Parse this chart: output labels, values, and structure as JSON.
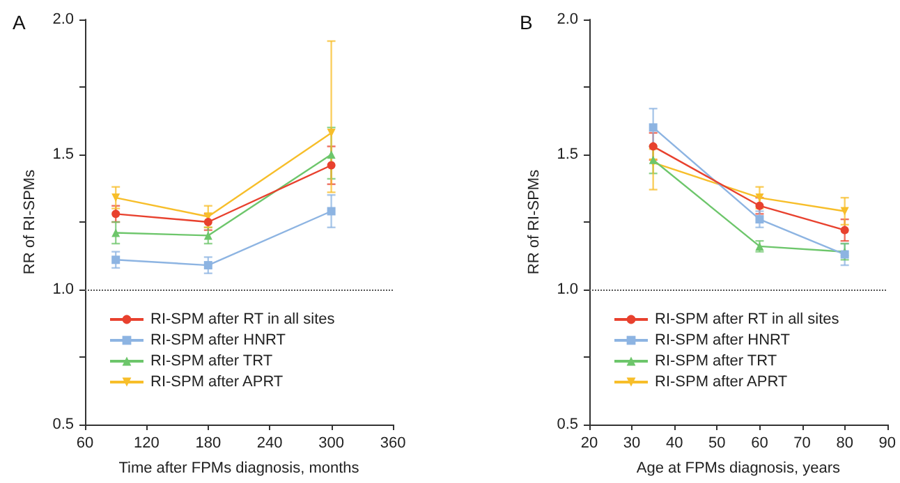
{
  "chart_data": [
    {
      "type": "line",
      "title": "A",
      "xlabel": "Time after FPMs diagnosis, months",
      "ylabel": "RR of RI-SPMs",
      "x": [
        90,
        180,
        300
      ],
      "series": [
        {
          "name": "RI-SPM after RT in all sites",
          "color": "#e8412e",
          "marker": "circle",
          "values": [
            1.28,
            1.25,
            1.46
          ],
          "errors": [
            [
              1.25,
              1.31
            ],
            [
              1.22,
              1.28
            ],
            [
              1.39,
              1.53
            ]
          ]
        },
        {
          "name": "RI-SPM after HNRT",
          "color": "#8db4e2",
          "marker": "square",
          "values": [
            1.11,
            1.09,
            1.29
          ],
          "errors": [
            [
              1.08,
              1.14
            ],
            [
              1.06,
              1.12
            ],
            [
              1.23,
              1.35
            ]
          ]
        },
        {
          "name": "RI-SPM after TRT",
          "color": "#6dc66b",
          "marker": "triangle",
          "values": [
            1.21,
            1.2,
            1.5
          ],
          "errors": [
            [
              1.17,
              1.25
            ],
            [
              1.17,
              1.23
            ],
            [
              1.41,
              1.6
            ]
          ]
        },
        {
          "name": "RI-SPM after APRT",
          "color": "#f7be2a",
          "marker": "triangle-down",
          "values": [
            1.34,
            1.27,
            1.58
          ],
          "errors": [
            [
              1.3,
              1.38
            ],
            [
              1.23,
              1.31
            ],
            [
              1.36,
              1.92
            ]
          ]
        }
      ],
      "xlim": [
        60,
        360
      ],
      "xticks": [
        60,
        120,
        180,
        240,
        300,
        360
      ],
      "ylim": [
        0.5,
        2.0
      ],
      "yticks": [
        {
          "value": 0.5,
          "label": "0.5"
        },
        {
          "value": 0.75,
          "label": null
        },
        {
          "value": 1,
          "label": "1.0"
        },
        {
          "value": 1.25,
          "label": null
        },
        {
          "value": 1.5,
          "label": "1.5"
        },
        {
          "value": 1.75,
          "label": null
        },
        {
          "value": 2,
          "label": "2.0"
        }
      ],
      "ref_lines": [
        {
          "axis": "y",
          "value": 1,
          "label": null,
          "color": "#555555",
          "line_style": "dotted"
        }
      ],
      "legend": "bottom left",
      "grid": false
    },
    {
      "type": "line",
      "title": "B",
      "xlabel": "Age at FPMs diagnosis, years",
      "ylabel": "RR of RI-SPMs",
      "x": [
        35,
        60,
        80
      ],
      "series": [
        {
          "name": "RI-SPM after RT in all sites",
          "color": "#e8412e",
          "marker": "circle",
          "values": [
            1.53,
            1.31,
            1.22
          ],
          "errors": [
            [
              1.48,
              1.58
            ],
            [
              1.28,
              1.34
            ],
            [
              1.18,
              1.26
            ]
          ]
        },
        {
          "name": "RI-SPM after HNRT",
          "color": "#8db4e2",
          "marker": "square",
          "values": [
            1.6,
            1.26,
            1.13
          ],
          "errors": [
            [
              1.53,
              1.67
            ],
            [
              1.23,
              1.29
            ],
            [
              1.09,
              1.17
            ]
          ]
        },
        {
          "name": "RI-SPM after TRT",
          "color": "#6dc66b",
          "marker": "triangle",
          "values": [
            1.48,
            1.16,
            1.14
          ],
          "errors": [
            [
              1.43,
              1.53
            ],
            [
              1.14,
              1.18
            ],
            [
              1.11,
              1.17
            ]
          ]
        },
        {
          "name": "RI-SPM after APRT",
          "color": "#f7be2a",
          "marker": "triangle-down",
          "values": [
            1.47,
            1.34,
            1.29
          ],
          "errors": [
            [
              1.37,
              1.52
            ],
            [
              1.3,
              1.38
            ],
            [
              1.24,
              1.34
            ]
          ]
        }
      ],
      "xlim": [
        20,
        90
      ],
      "xticks": [
        20,
        30,
        40,
        50,
        60,
        70,
        80,
        90
      ],
      "ylim": [
        0.5,
        2.0
      ],
      "yticks": [
        {
          "value": 0.5,
          "label": "0.5"
        },
        {
          "value": 0.75,
          "label": null
        },
        {
          "value": 1,
          "label": "1.0"
        },
        {
          "value": 1.25,
          "label": null
        },
        {
          "value": 1.5,
          "label": "1.5"
        },
        {
          "value": 1.75,
          "label": null
        },
        {
          "value": 2,
          "label": "2.0"
        }
      ],
      "ref_lines": [
        {
          "axis": "y",
          "value": 1,
          "label": null,
          "color": "#555555",
          "line_style": "dotted"
        }
      ],
      "legend": "bottom left",
      "grid": false
    }
  ]
}
